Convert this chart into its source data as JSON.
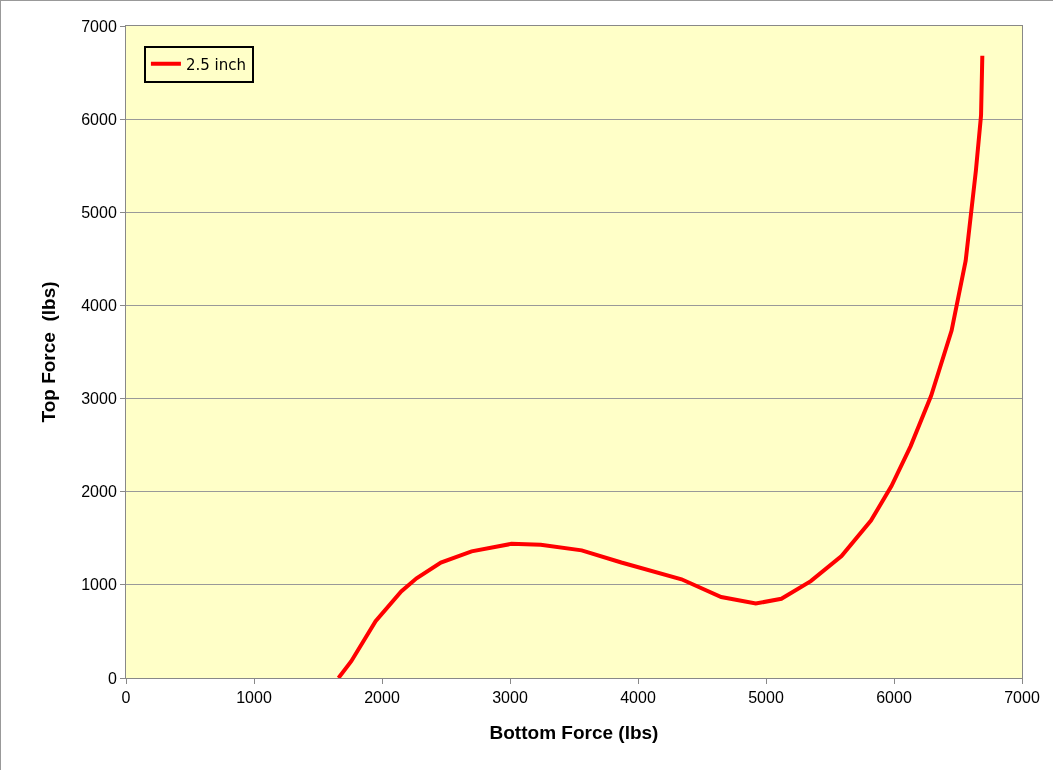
{
  "chart_data": {
    "type": "line",
    "xlabel": "Bottom Force (lbs)",
    "ylabel": "Top Force  (lbs)",
    "xlim": [
      0,
      7000
    ],
    "ylim": [
      0,
      7000
    ],
    "xticks": [
      0,
      1000,
      2000,
      3000,
      4000,
      5000,
      6000,
      7000
    ],
    "yticks": [
      0,
      1000,
      2000,
      3000,
      4000,
      5000,
      6000,
      7000
    ],
    "grid": "y",
    "legend": "top left",
    "marker": "none",
    "line_style": "solid",
    "series": [
      {
        "name": "2.5 inch",
        "color": "#ff0000",
        "x": [
          1660,
          1760,
          1950,
          2150,
          2270,
          2460,
          2700,
          3010,
          3240,
          3560,
          3870,
          4340,
          4650,
          4920,
          5120,
          5350,
          5590,
          5820,
          5980,
          6130,
          6290,
          6450,
          6560,
          6640,
          6680,
          6690
        ],
        "values": [
          0,
          180,
          610,
          930,
          1070,
          1240,
          1360,
          1440,
          1430,
          1370,
          1240,
          1060,
          870,
          800,
          850,
          1040,
          1310,
          1690,
          2060,
          2490,
          3030,
          3730,
          4480,
          5450,
          6040,
          6680
        ]
      }
    ]
  }
}
